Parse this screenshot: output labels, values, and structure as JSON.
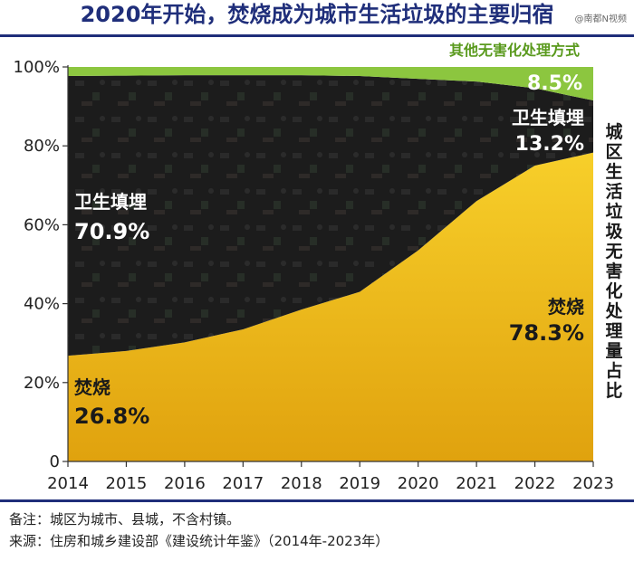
{
  "title": "2020年开始，焚烧成为城市生活垃圾的主要归宿",
  "watermark": "@南都N视频",
  "footer": {
    "note": "备注：城区为城市、县城，不含村镇。",
    "source": "来源：住房和城乡建设部《建设统计年鉴》（2014年-2023年）"
  },
  "chart_data": {
    "type": "area",
    "stacked": true,
    "x": [
      2014,
      2015,
      2016,
      2017,
      2018,
      2019,
      2020,
      2021,
      2022,
      2023
    ],
    "ylabel": "城区生活垃圾无害化处理量占比",
    "y_ticks": [
      "0",
      "20%",
      "40%",
      "60%",
      "80%",
      "100%"
    ],
    "ylim": [
      0,
      100
    ],
    "series": [
      {
        "name": "焚烧",
        "color": "#f2c318",
        "values": [
          26.8,
          28.0,
          30.2,
          33.5,
          38.5,
          43.0,
          53.5,
          66.0,
          75.0,
          78.3
        ]
      },
      {
        "name": "卫生填埋",
        "color": "#1c1c1c",
        "values": [
          70.9,
          69.8,
          67.7,
          64.4,
          59.4,
          54.7,
          43.5,
          30.3,
          19.6,
          13.2
        ]
      },
      {
        "name": "其他无害化处理方式",
        "color": "#8cc63f",
        "values": [
          2.3,
          2.2,
          2.1,
          2.1,
          2.1,
          2.3,
          3.0,
          3.7,
          5.4,
          8.5
        ]
      }
    ],
    "labels": {
      "incineration_2014_name": "焚烧",
      "incineration_2014_value": "26.8%",
      "landfill_2014_name": "卫生填埋",
      "landfill_2014_value": "70.9%",
      "incineration_2023_name": "焚烧",
      "incineration_2023_value": "78.3%",
      "landfill_2023_name": "卫生填埋",
      "landfill_2023_value": "13.2%",
      "other_name": "其他无害化处理方式",
      "other_value": "8.5%"
    }
  }
}
